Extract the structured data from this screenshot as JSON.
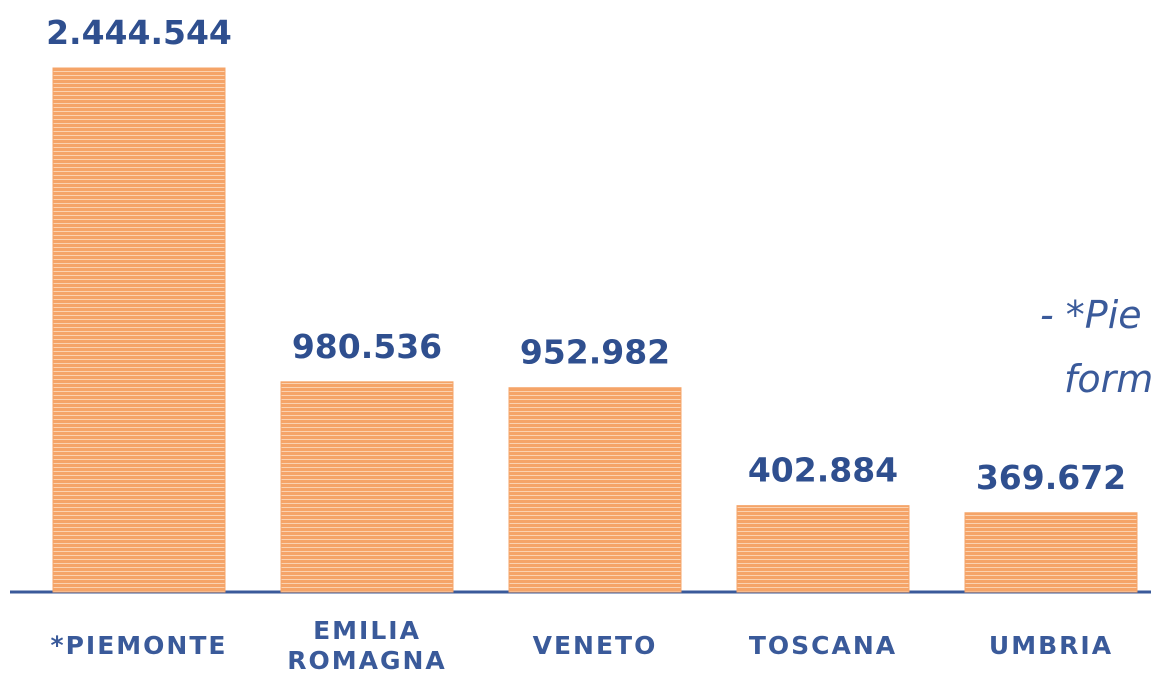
{
  "chart_data": {
    "type": "bar",
    "categories": [
      "*PIEMONTE",
      "EMILIA ROMAGNA",
      "VENETO",
      "TOSCANA",
      "UMBRIA"
    ],
    "values": [
      2444544,
      980536,
      952982,
      402884,
      369672
    ],
    "value_labels": [
      "2.444.544",
      "980.536",
      "952.982",
      "402.884",
      "369.672"
    ],
    "color": "#f5a468",
    "annotations": [
      "- *Pie",
      "form"
    ]
  }
}
